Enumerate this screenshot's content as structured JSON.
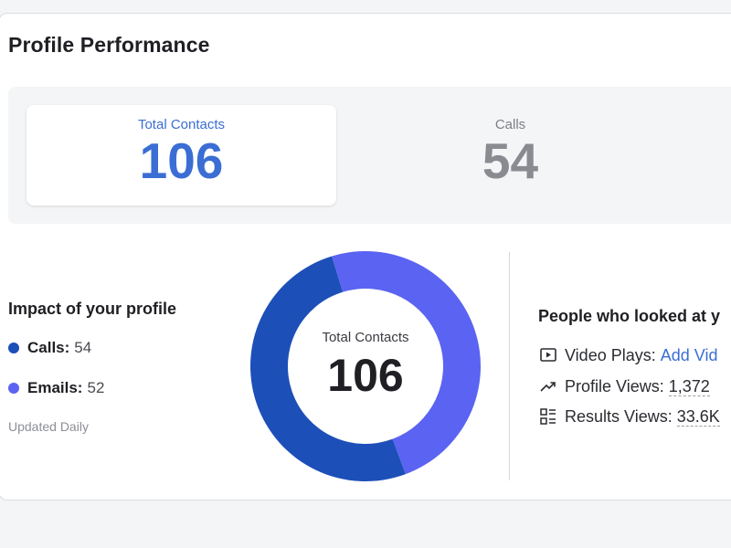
{
  "header": {
    "title": "Profile Performance"
  },
  "stats": [
    {
      "label": "Total Contacts",
      "value": "106"
    },
    {
      "label": "Calls",
      "value": "54"
    }
  ],
  "impact": {
    "title": "Impact of your profile",
    "items": [
      {
        "name": "Calls:",
        "value": "54",
        "color": "#1d4fb8"
      },
      {
        "name": "Emails:",
        "value": "52",
        "color": "#5b63f2"
      }
    ],
    "updated": "Updated Daily"
  },
  "chart_data": {
    "type": "pie",
    "categories": [
      "Calls",
      "Emails"
    ],
    "values": [
      54,
      52
    ],
    "colors": [
      "#1d4fb8",
      "#5b63f2"
    ],
    "center_label": "Total Contacts",
    "center_value": "106"
  },
  "looked": {
    "title": "People who looked at y",
    "video_label": "Video Plays:",
    "video_link": "Add Vid",
    "profile_label": "Profile Views:",
    "profile_value": "1,372",
    "results_label": "Results Views:",
    "results_value": "33.6K"
  },
  "icons": [
    "video-play-icon",
    "trending-up-icon",
    "list-grid-icon"
  ]
}
